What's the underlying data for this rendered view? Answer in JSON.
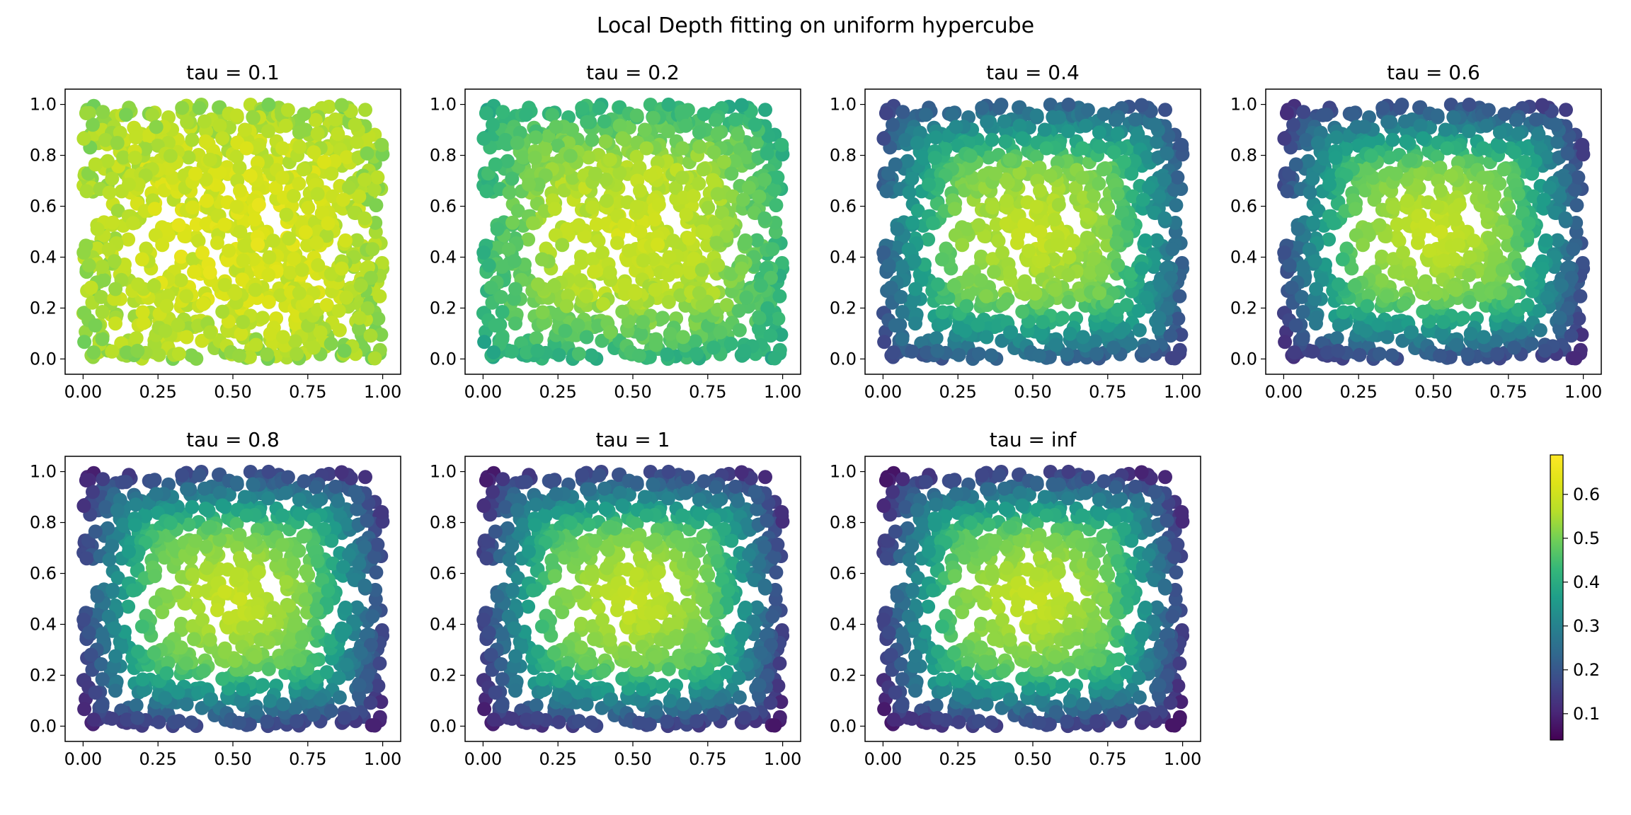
{
  "figure": {
    "suptitle": "Local Depth fitting on uniform hypercube"
  },
  "chart_data": {
    "type": "scatter",
    "title": "Local Depth fitting on uniform hypercube",
    "n_points_per_panel": 1000,
    "point_distribution": "uniform on [0,1]^2 (same points in every panel)",
    "color_encoding": "local depth value",
    "colormap": "viridis",
    "colorbar": {
      "range": [
        0.04,
        0.69
      ],
      "ticks": [
        "0.1",
        "0.2",
        "0.3",
        "0.4",
        "0.5",
        "0.6"
      ]
    },
    "xlim": [
      -0.06,
      1.06
    ],
    "ylim": [
      -0.06,
      1.06
    ],
    "xticks": [
      "0.00",
      "0.25",
      "0.50",
      "0.75",
      "1.00"
    ],
    "yticks": [
      "0.0",
      "0.2",
      "0.4",
      "0.6",
      "0.8",
      "1.0"
    ],
    "grid": false,
    "panels": [
      {
        "title": "tau = 0.1",
        "depth_center": 0.62,
        "depth_corner": 0.52,
        "noise": 0.04
      },
      {
        "title": "tau = 0.2",
        "depth_center": 0.6,
        "depth_corner": 0.38,
        "noise": 0.025
      },
      {
        "title": "tau = 0.4",
        "depth_center": 0.6,
        "depth_corner": 0.14,
        "noise": 0.015
      },
      {
        "title": "tau = 0.6",
        "depth_center": 0.6,
        "depth_corner": 0.09,
        "noise": 0.01
      },
      {
        "title": "tau = 0.8",
        "depth_center": 0.6,
        "depth_corner": 0.07,
        "noise": 0.01
      },
      {
        "title": "tau = 1",
        "depth_center": 0.6,
        "depth_corner": 0.06,
        "noise": 0.01
      },
      {
        "title": "tau = inf",
        "depth_center": 0.6,
        "depth_corner": 0.05,
        "noise": 0.01
      }
    ]
  }
}
